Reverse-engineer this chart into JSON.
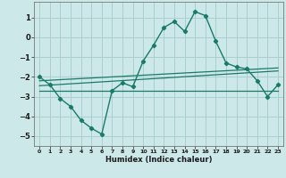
{
  "xlabel": "Humidex (Indice chaleur)",
  "background_color": "#cce8e8",
  "grid_color": "#aacfcf",
  "line_color": "#1a7a6a",
  "xlim": [
    -0.5,
    23.5
  ],
  "ylim": [
    -5.5,
    1.8
  ],
  "yticks": [
    1,
    0,
    -1,
    -2,
    -3,
    -4,
    -5
  ],
  "xticks": [
    0,
    1,
    2,
    3,
    4,
    5,
    6,
    7,
    8,
    9,
    10,
    11,
    12,
    13,
    14,
    15,
    16,
    17,
    18,
    19,
    20,
    21,
    22,
    23
  ],
  "main_line_x": [
    0,
    1,
    2,
    3,
    4,
    5,
    6,
    7,
    8,
    9,
    10,
    11,
    12,
    13,
    14,
    15,
    16,
    17,
    18,
    19,
    20,
    21,
    22,
    23
  ],
  "main_line_y": [
    -2.0,
    -2.4,
    -3.1,
    -3.5,
    -4.2,
    -4.6,
    -4.9,
    -2.7,
    -2.3,
    -2.5,
    -1.2,
    -0.4,
    0.5,
    0.8,
    0.3,
    1.3,
    1.1,
    -0.2,
    -1.3,
    -1.5,
    -1.6,
    -2.2,
    -3.0,
    -2.4
  ],
  "reg_line1_x": [
    0,
    23
  ],
  "reg_line1_y": [
    -2.2,
    -1.55
  ],
  "reg_line2_x": [
    0,
    23
  ],
  "reg_line2_y": [
    -2.45,
    -1.7
  ],
  "reg_line3_x": [
    0,
    23
  ],
  "reg_line3_y": [
    -2.7,
    -2.7
  ],
  "xlabel_fontsize": 6.0,
  "ylabel_fontsize": 6.0,
  "xtick_fontsize": 4.5,
  "ytick_fontsize": 6.0
}
